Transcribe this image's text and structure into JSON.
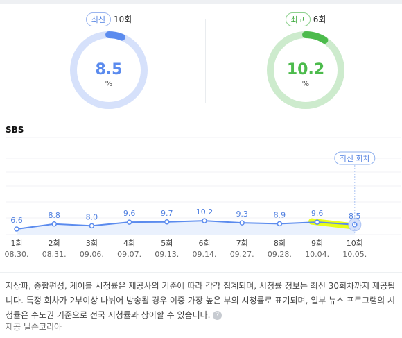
{
  "latest": {
    "badge": "최신",
    "episode": "10회",
    "value": 8.5,
    "value_text": "8.5",
    "unit": "%",
    "color": "#5b8bee",
    "track_color": "#d6e1fb"
  },
  "best": {
    "badge": "최고",
    "episode": "6회",
    "value": 10.2,
    "value_text": "10.2",
    "unit": "%",
    "color": "#4cbb4c",
    "track_color": "#cdebcd"
  },
  "section_title": "SBS",
  "chart_data": {
    "type": "area",
    "series": [
      {
        "values": [
          6.6,
          8.8,
          8.0,
          9.6,
          9.7,
          10.2,
          9.3,
          8.9,
          9.6,
          8.5
        ]
      }
    ],
    "categories": [
      "1회",
      "2회",
      "3회",
      "4회",
      "5회",
      "6회",
      "7회",
      "8회",
      "9회",
      "10회"
    ],
    "dates": [
      "08.30.",
      "08.31.",
      "09.06.",
      "09.07.",
      "09.13.",
      "09.14.",
      "09.27.",
      "09.28.",
      "10.04.",
      "10.05."
    ],
    "data_labels": [
      "6.6",
      "8.8",
      "8.0",
      "9.6",
      "9.7",
      "10.2",
      "9.3",
      "8.9",
      "9.6",
      "8.5"
    ],
    "latest_tag": "최신 회차",
    "line_color": "#5b8bee",
    "fill_color": "#eaf1fd",
    "highlight_color": "#e8ff00",
    "grid": true
  },
  "note": "지상파, 종합편성, 케이블 시청률은 제공사의 기준에 따라 각각 집계되며, 시청률 정보는 최신 30회차까지 제공됩니다. 특정 회차가 2부이상 나뉘어 방송될 경우 이중 가장 높은 부의 시청률로 표기되며, 일부 뉴스 프로그램의 시청률은 수도권 기준으로 전국 시청률과 상이할 수 있습니다.",
  "help_icon": "question-icon",
  "source": "제공 닐슨코리아"
}
